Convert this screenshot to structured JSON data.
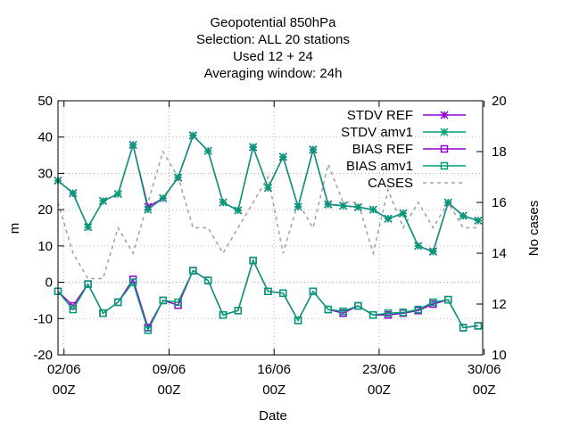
{
  "chart_data": {
    "type": "line",
    "title_lines": [
      "Geopotential 850hPa",
      "Selection: ALL      20 stations",
      "Used  12  + 24",
      "Averaging window: 24h"
    ],
    "xlabel": "Date",
    "ylabel": "m",
    "y2label": "No cases",
    "xlim": [
      1.6,
      29.9
    ],
    "ylim": [
      -20,
      50
    ],
    "y2lim": [
      10,
      20
    ],
    "x_ticks": [
      {
        "x": 2,
        "label1": "02/06",
        "label2": "00Z"
      },
      {
        "x": 9,
        "label1": "09/06",
        "label2": "00Z"
      },
      {
        "x": 16,
        "label1": "16/06",
        "label2": "00Z"
      },
      {
        "x": 23,
        "label1": "23/06",
        "label2": "00Z"
      },
      {
        "x": 30,
        "label1": "30/06",
        "label2": "00Z"
      }
    ],
    "y_ticks": [
      -20,
      -10,
      0,
      10,
      20,
      30,
      40,
      50
    ],
    "y2_ticks": [
      10,
      12,
      14,
      16,
      18,
      20
    ],
    "grid": true,
    "legend_position": "top-right",
    "x": [
      1.6,
      2.6,
      3.6,
      4.6,
      5.6,
      6.6,
      7.6,
      8.6,
      9.6,
      10.6,
      11.6,
      12.6,
      13.6,
      14.6,
      15.6,
      16.6,
      17.6,
      18.6,
      19.6,
      20.6,
      21.6,
      22.6,
      23.6,
      24.6,
      25.6,
      26.6,
      27.6,
      28.6,
      29.6
    ],
    "series": [
      {
        "name": "STDV REF",
        "axis": "y1",
        "color": "#9400d3",
        "marker": "star",
        "dash": false,
        "values": [
          28,
          24.5,
          15.2,
          22.4,
          24.3,
          37.8,
          20.8,
          23.1,
          28.8,
          40.4,
          36.2,
          22,
          19.8,
          37.2,
          26,
          34.5,
          20.8,
          36.5,
          21.5,
          21.1,
          20.7,
          20,
          17.5,
          19,
          10,
          8.5,
          21.9,
          18.3,
          17
        ]
      },
      {
        "name": "STDV amv1",
        "axis": "y1",
        "color": "#009e73",
        "marker": "star",
        "dash": false,
        "values": [
          28,
          24.6,
          15.2,
          22.4,
          24.3,
          37.9,
          20,
          23.2,
          28.9,
          40.5,
          36.2,
          22,
          19.8,
          37.3,
          26,
          34.6,
          20.8,
          36.6,
          21.4,
          21.1,
          20.7,
          20,
          17.5,
          19,
          10,
          8.4,
          22,
          18.3,
          17
        ]
      },
      {
        "name": "BIAS REF",
        "axis": "y1",
        "color": "#9400d3",
        "marker": "square",
        "dash": false,
        "values": [
          -2.5,
          -6.5,
          -0.5,
          -8.5,
          -5.5,
          0.8,
          -12.5,
          -5,
          -6.3,
          3.2,
          0.5,
          -9,
          -7.8,
          6,
          -2.5,
          -3,
          -10.5,
          -2.5,
          -7.5,
          -8.5,
          -6.5,
          -9,
          -9,
          -8.5,
          -7.8,
          -6,
          -4.8,
          -12.5,
          -12
        ]
      },
      {
        "name": "BIAS amv1",
        "axis": "y1",
        "color": "#009e73",
        "marker": "square",
        "dash": false,
        "values": [
          -2.5,
          -7.5,
          -0.5,
          -8.5,
          -5.5,
          0,
          -13.2,
          -5,
          -5.5,
          3.2,
          0.5,
          -9,
          -7.8,
          6,
          -2.5,
          -3,
          -10.5,
          -2.5,
          -7.5,
          -8,
          -6.5,
          -9,
          -8.5,
          -8.3,
          -7.5,
          -5.5,
          -4.8,
          -12.5,
          -12
        ]
      },
      {
        "name": "CASES",
        "axis": "y2",
        "color": "#a0a0a0",
        "marker": "none",
        "dash": true,
        "values": [
          16,
          14,
          13,
          13,
          15,
          14,
          16,
          18,
          17,
          15,
          15,
          14,
          15,
          16,
          17,
          14,
          16,
          15,
          17.5,
          16,
          16,
          14,
          16.5,
          15,
          16,
          15,
          16,
          15,
          15
        ]
      }
    ]
  }
}
